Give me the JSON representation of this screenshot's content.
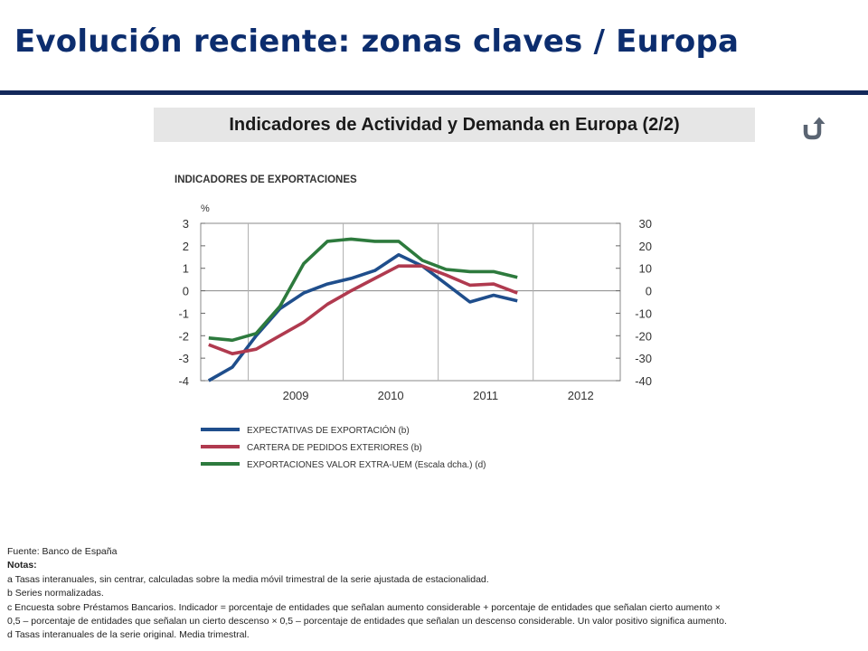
{
  "page": {
    "title": "Evolución reciente:  zonas claves / Europa",
    "subtitle": "Indicadores de Actividad y Demanda en Europa (2/2)",
    "return_icon": "return-arrow-icon"
  },
  "chart_data": {
    "type": "line",
    "title": "INDICADORES DE EXPORTACIONES",
    "ylabel": "%",
    "x_tick_labels": [
      "2009",
      "2010",
      "2011",
      "2012"
    ],
    "xlim": [
      "2008-07",
      "2012-12"
    ],
    "ylim_left": [
      -4,
      3
    ],
    "ylim_right": [
      -40,
      30
    ],
    "y_ticks_left": [
      "3",
      "2",
      "1",
      "0",
      "-1",
      "-2",
      "-3",
      "-4"
    ],
    "y_ticks_right": [
      "30",
      "20",
      "10",
      "0",
      "-10",
      "-20",
      "-30",
      "-40"
    ],
    "x": [
      "2008-08",
      "2008-11",
      "2009-02",
      "2009-05",
      "2009-08",
      "2009-11",
      "2010-02",
      "2010-05",
      "2010-08",
      "2010-11",
      "2011-02",
      "2011-05",
      "2011-08",
      "2011-11",
      "2012-02"
    ],
    "series": [
      {
        "name": "EXPECTATIVAS DE EXPORTACIÓN (b)",
        "color": "#1f4e8c",
        "axis": "left",
        "values": [
          -4.0,
          -3.4,
          -2.0,
          -0.8,
          -0.1,
          0.3,
          0.55,
          0.9,
          1.6,
          1.1,
          0.3,
          -0.5,
          -0.2,
          -0.45,
          null
        ]
      },
      {
        "name": "CARTERA DE PEDIDOS EXTERIORES (b)",
        "color": "#b03a4f",
        "axis": "left",
        "values": [
          -2.4,
          -2.8,
          -2.6,
          -2.0,
          -1.4,
          -0.6,
          0.0,
          0.55,
          1.1,
          1.1,
          0.7,
          0.25,
          0.3,
          -0.1,
          null
        ]
      },
      {
        "name": "EXPORTACIONES VALOR EXTRA-UEM (Escala dcha.) (d)",
        "color": "#2d7a3d",
        "axis": "right",
        "values": [
          -21,
          -22,
          -19,
          -7,
          12,
          22,
          23,
          22,
          22,
          13.5,
          9.5,
          8.5,
          8.5,
          6,
          null
        ]
      }
    ],
    "grid": "vertical year separators and zero line",
    "legend": "bottom-left"
  },
  "notes": {
    "source": "Fuente: Banco de España",
    "heading": "Notas:",
    "lines": [
      "a Tasas interanuales, sin centrar, calculadas sobre la media móvil trimestral de la serie ajustada de estacionalidad.",
      "b Series normalizadas.",
      "c Encuesta sobre Préstamos Bancarios. Indicador = porcentaje de entidades que señalan aumento considerable + porcentaje de entidades que señalan cierto  aumento ×",
      "0,5 – porcentaje de entidades que señalan un cierto descenso × 0,5 – porcentaje de entidades que señalan un descenso considerable. Un valor positivo significa aumento.",
      "d Tasas interanuales de la serie original. Media trimestral."
    ]
  }
}
